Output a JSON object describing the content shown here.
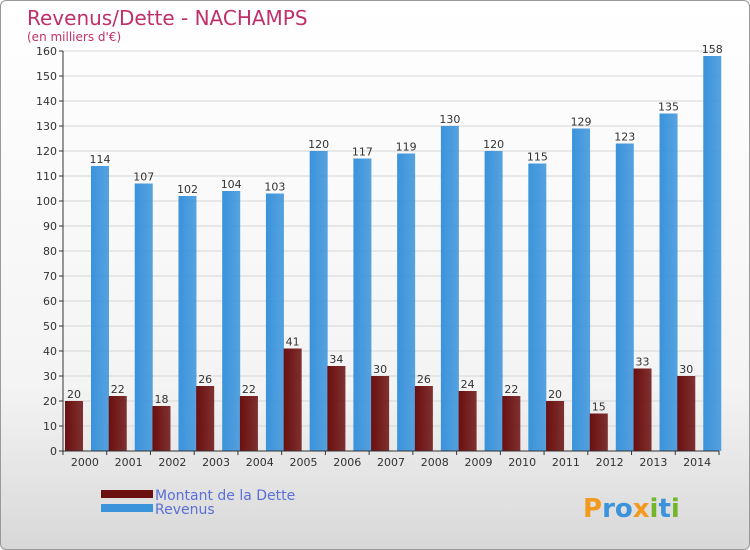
{
  "chart_data": {
    "type": "bar",
    "title": "Revenus/Dette - NACHAMPS",
    "subtitle": "(en milliers d'€)",
    "categories": [
      "2000",
      "2001",
      "2002",
      "2003",
      "2004",
      "2005",
      "2006",
      "2007",
      "2008",
      "2009",
      "2010",
      "2011",
      "2012",
      "2013",
      "2014"
    ],
    "series": [
      {
        "name": "Montant de la Dette",
        "color": "#6b0f0f",
        "values": [
          20,
          22,
          18,
          26,
          22,
          41,
          34,
          30,
          26,
          24,
          22,
          20,
          15,
          33,
          30
        ]
      },
      {
        "name": "Revenus",
        "color": "#3a93db",
        "values": [
          114,
          107,
          102,
          104,
          103,
          120,
          117,
          119,
          130,
          120,
          115,
          129,
          123,
          135,
          158
        ]
      }
    ],
    "ylim": [
      0,
      160
    ],
    "yticks": [
      0,
      10,
      20,
      30,
      40,
      50,
      60,
      70,
      80,
      90,
      100,
      110,
      120,
      130,
      140,
      150,
      160
    ],
    "grid": true,
    "legend_position": "bottom-left",
    "colors": {
      "title": "#c0306a",
      "legend_text": "#5b6fd6",
      "axis": "#333333"
    }
  },
  "logo": {
    "text": "Proxiti"
  }
}
